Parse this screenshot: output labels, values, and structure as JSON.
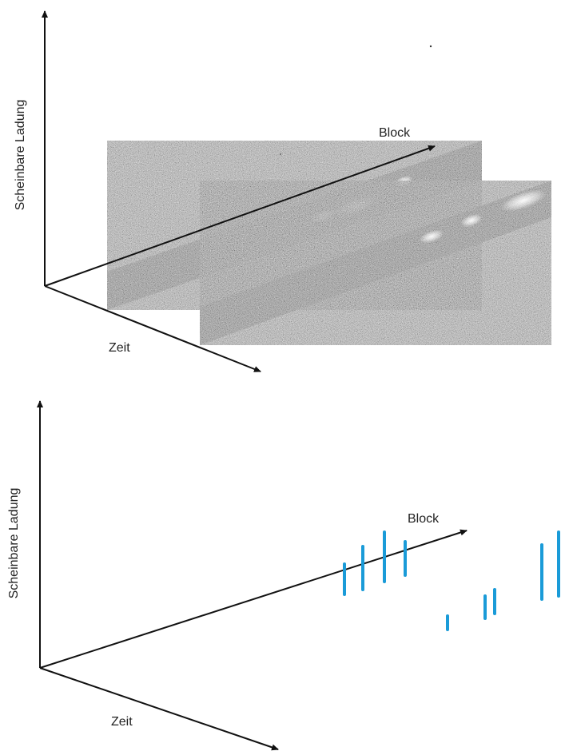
{
  "panels": [
    {
      "y_axis_label": "Scheinbare Ladung",
      "x_axis_label": "Zeit",
      "z_axis_label": "Block"
    },
    {
      "y_axis_label": "Scheinbare Ladung",
      "x_axis_label": "Zeit",
      "z_axis_label": "Block"
    }
  ],
  "colors": {
    "axis": "#111111",
    "pulse": "#1a9bd8",
    "strip_noise": "#7a7a7a"
  }
}
